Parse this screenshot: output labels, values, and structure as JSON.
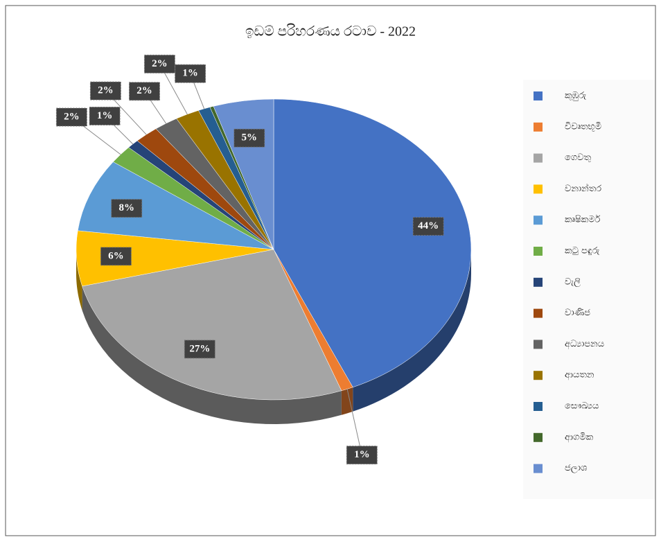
{
  "chart_data": {
    "type": "pie",
    "title": "ඉඩම් පරිහරණය රටාව - 2022",
    "categories": [
      "කුඹුරු",
      "විවෘතභූමි",
      "ගෙවතු",
      "වනාන්තර",
      "කෘෂිකර්ම",
      "කටු පඳුරු",
      "වැලි",
      "වාණිජ",
      "අධ්‍යාපනය",
      "ආයතන",
      "සෞඛ්‍යය",
      "ආගමික",
      "ජලාශ"
    ],
    "values": [
      44,
      1,
      27,
      6,
      8,
      2,
      1,
      2,
      2,
      2,
      1,
      0.3,
      5
    ],
    "value_labels": [
      "44%",
      "1%",
      "27%",
      "6%",
      "8%",
      "2%",
      "1%",
      "2%",
      "2%",
      "2%",
      "1%",
      null,
      "5%"
    ],
    "colors": [
      "#4472c4",
      "#ed7d31",
      "#a5a5a5",
      "#ffc000",
      "#5b9bd5",
      "#70ad47",
      "#264478",
      "#9e480e",
      "#636363",
      "#997300",
      "#255e91",
      "#43682b",
      "#698ed0"
    ],
    "legend": "right"
  }
}
